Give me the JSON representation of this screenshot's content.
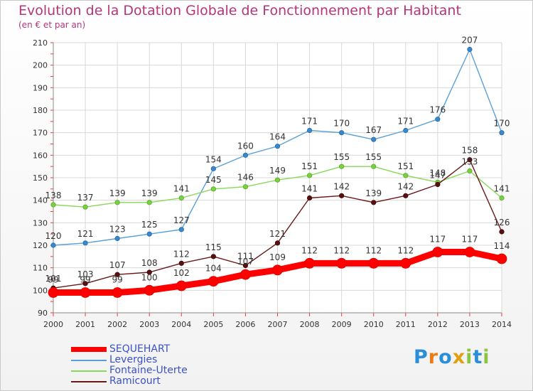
{
  "header": {
    "title": "Evolution de la Dotation Globale de Fonctionnement par Habitant",
    "subtitle": "(en € et par an)"
  },
  "logo": {
    "text": "Proxiti",
    "colors": [
      "#2a8fd8",
      "#f07a12",
      "#2a8fd8",
      "#e0a010",
      "#8bc43f",
      "#2a8fd8",
      "#8bc43f"
    ]
  },
  "colors": {
    "SEQUEHART": "#ff0000",
    "Levergies": "#5aa0d8",
    "Fontaine-Uterte": "#88d858",
    "Ramicourt": "#6b1818"
  },
  "chart_data": {
    "type": "line",
    "title": "Evolution de la Dotation Globale de Fonctionnement par Habitant",
    "subtitle": "(en € et par an)",
    "x": [
      "2000",
      "2001",
      "2002",
      "2003",
      "2004",
      "2005",
      "2006",
      "2007",
      "2008",
      "2009",
      "2010",
      "2011",
      "2012",
      "2013",
      "2014"
    ],
    "yticks": [
      90,
      100,
      110,
      120,
      130,
      140,
      150,
      160,
      170,
      180,
      190,
      200,
      210
    ],
    "ylim": [
      90,
      210
    ],
    "grid": true,
    "legend_position": "bottom-left",
    "series": [
      {
        "name": "SEQUEHART",
        "values": [
          99,
          99,
          99,
          100,
          102,
          104,
          107,
          109,
          112,
          112,
          112,
          112,
          117,
          117,
          114
        ]
      },
      {
        "name": "Levergies",
        "values": [
          120,
          121,
          123,
          125,
          127,
          154,
          160,
          164,
          171,
          170,
          167,
          171,
          176,
          207,
          170
        ]
      },
      {
        "name": "Fontaine-Uterte",
        "values": [
          138,
          137,
          139,
          139,
          141,
          145,
          146,
          149,
          151,
          155,
          155,
          151,
          148,
          153,
          141
        ]
      },
      {
        "name": "Ramicourt",
        "values": [
          101,
          103,
          107,
          108,
          112,
          115,
          111,
          121,
          141,
          142,
          139,
          142,
          147,
          158,
          126
        ]
      }
    ]
  }
}
